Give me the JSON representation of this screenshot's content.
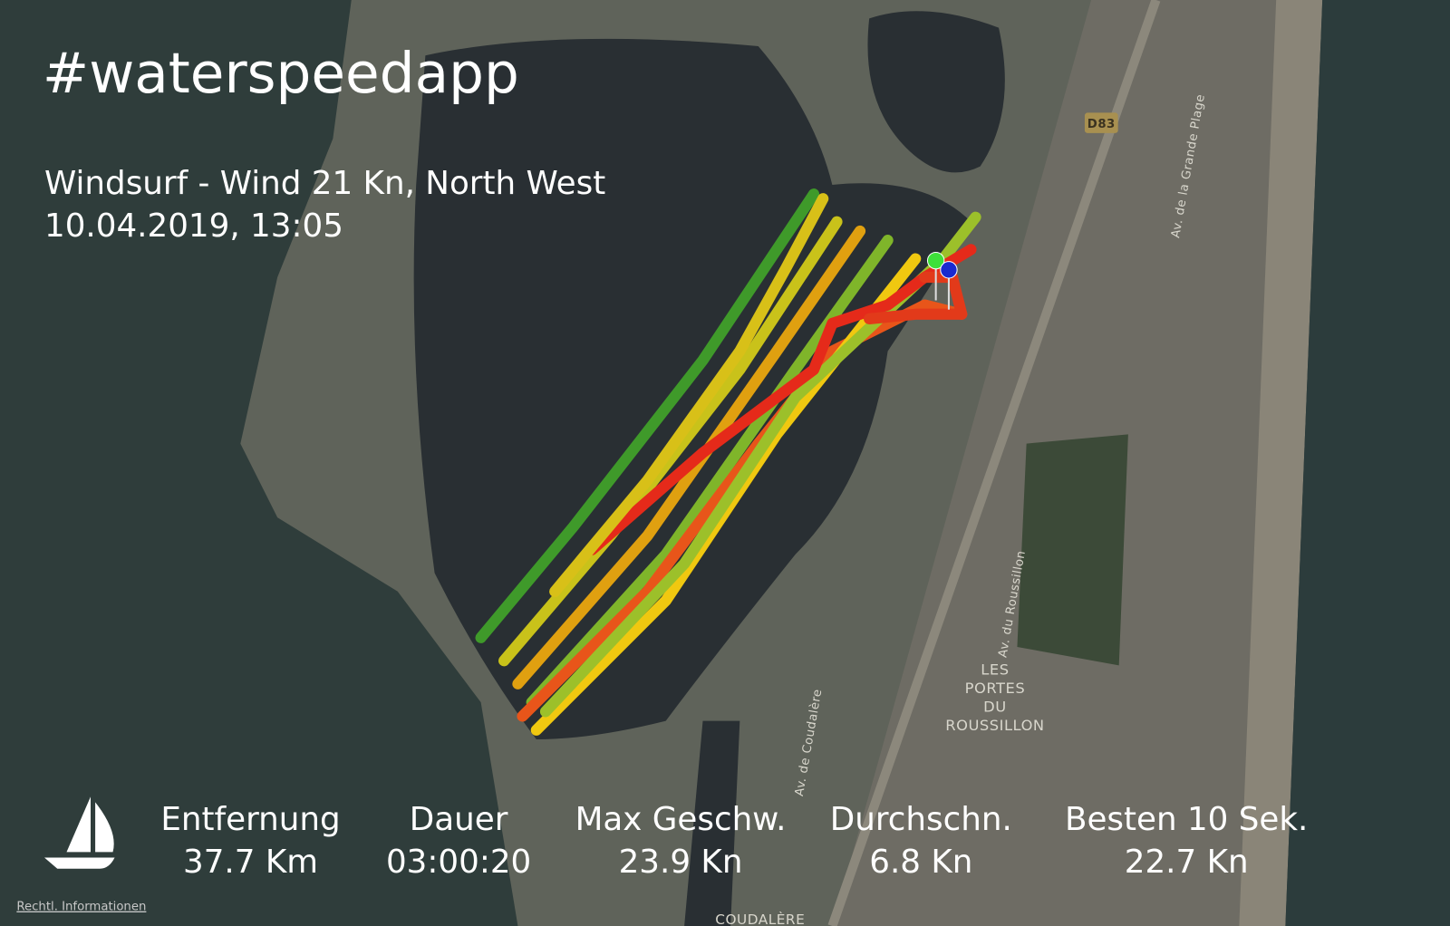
{
  "header": {
    "title": "#waterspeedapp",
    "activity": "Windsurf - Wind 21 Kn, North West",
    "datetime": "10.04.2019, 13:05"
  },
  "stats": [
    {
      "label": "Entfernung",
      "value": "37.7 Km"
    },
    {
      "label": "Dauer",
      "value": "03:00:20"
    },
    {
      "label": "Max Geschw.",
      "value": "23.9 Kn"
    },
    {
      "label": "Durchschn.",
      "value": "6.8 Kn"
    },
    {
      "label": "Besten 10 Sek.",
      "value": "22.7 Kn"
    }
  ],
  "map_labels": {
    "road": "D83",
    "grande_plage": "Av. de la Grande Plage",
    "roussillon_av": "Av. du Roussillon",
    "portes": [
      "LES",
      "PORTES",
      "DU",
      "ROUSSILLON"
    ],
    "coudalere_av": "Av. de Coudalère",
    "coudalere": "COUDALÈRE"
  },
  "footer": {
    "legal": "Rechtl. Informationen"
  }
}
